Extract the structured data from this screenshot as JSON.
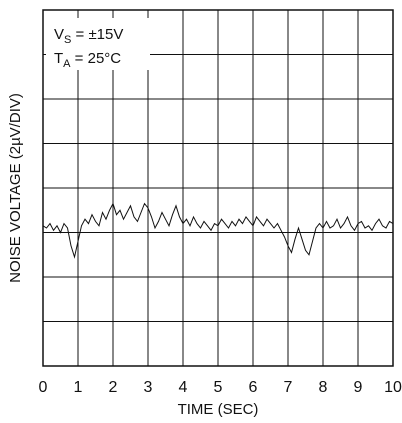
{
  "chart_data": {
    "type": "line",
    "title": "",
    "xlabel": "TIME (SEC)",
    "ylabel": "NOISE VOLTAGE (2µV/DIV)",
    "xlim": [
      0,
      10
    ],
    "x_ticks": [
      "0",
      "1",
      "2",
      "3",
      "4",
      "5",
      "6",
      "7",
      "8",
      "9",
      "10"
    ],
    "y_divisions": 8,
    "y_unit_per_div_uV": 2,
    "ylim_uV": [
      -6,
      10
    ],
    "grid": true,
    "annotation": {
      "line1_main": "V",
      "line1_sub": "S",
      "line1_rest": " = ±15V",
      "line2_main": "T",
      "line2_sub": "A",
      "line2_rest": " = 25°C"
    },
    "series": [
      {
        "x": [
          0.0,
          0.1,
          0.2,
          0.3,
          0.4,
          0.5,
          0.6,
          0.7,
          0.8,
          0.9,
          1.0,
          1.1,
          1.2,
          1.3,
          1.4,
          1.5,
          1.6,
          1.7,
          1.8,
          1.9,
          2.0,
          2.1,
          2.2,
          2.3,
          2.4,
          2.5,
          2.6,
          2.7,
          2.8,
          2.9,
          3.0,
          3.1,
          3.2,
          3.3,
          3.4,
          3.5,
          3.6,
          3.7,
          3.8,
          3.9,
          4.0,
          4.1,
          4.2,
          4.3,
          4.4,
          4.5,
          4.6,
          4.7,
          4.8,
          4.9,
          5.0,
          5.1,
          5.2,
          5.3,
          5.4,
          5.5,
          5.6,
          5.7,
          5.8,
          5.9,
          6.0,
          6.1,
          6.2,
          6.3,
          6.4,
          6.5,
          6.6,
          6.7,
          6.8,
          6.9,
          7.0,
          7.1,
          7.2,
          7.3,
          7.4,
          7.5,
          7.6,
          7.7,
          7.8,
          7.9,
          8.0,
          8.1,
          8.2,
          8.3,
          8.4,
          8.5,
          8.6,
          8.7,
          8.8,
          8.9,
          9.0,
          9.1,
          9.2,
          9.3,
          9.4,
          9.5,
          9.6,
          9.7,
          9.8,
          9.9,
          10.0
        ],
        "y": [
          0.3,
          0.2,
          0.4,
          0.1,
          0.3,
          0.0,
          0.4,
          0.2,
          -0.6,
          -1.1,
          -0.4,
          0.3,
          0.6,
          0.4,
          0.8,
          0.5,
          0.3,
          0.9,
          0.6,
          1.0,
          1.3,
          0.8,
          1.0,
          0.6,
          0.9,
          1.2,
          0.7,
          0.5,
          0.9,
          1.3,
          1.1,
          0.7,
          0.2,
          0.5,
          0.9,
          0.6,
          0.3,
          0.8,
          1.2,
          0.7,
          0.4,
          0.6,
          0.3,
          0.7,
          0.4,
          0.2,
          0.5,
          0.3,
          0.1,
          0.4,
          0.3,
          0.6,
          0.4,
          0.2,
          0.5,
          0.3,
          0.6,
          0.4,
          0.7,
          0.5,
          0.3,
          0.7,
          0.5,
          0.3,
          0.6,
          0.4,
          0.2,
          0.4,
          0.1,
          -0.2,
          -0.6,
          -0.9,
          -0.3,
          0.2,
          -0.3,
          -0.8,
          -1.0,
          -0.4,
          0.2,
          0.4,
          0.2,
          0.5,
          0.2,
          0.3,
          0.6,
          0.2,
          0.4,
          0.7,
          0.3,
          0.1,
          0.4,
          0.5,
          0.2,
          0.3,
          0.1,
          0.4,
          0.6,
          0.3,
          0.2,
          0.5,
          0.4
        ]
      }
    ]
  }
}
